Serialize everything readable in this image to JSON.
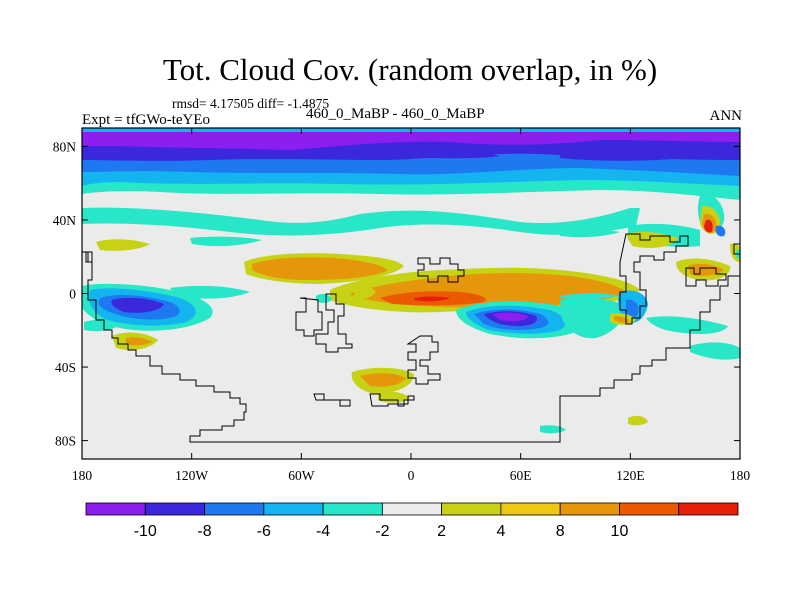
{
  "title": "Tot. Cloud Cov. (random overlap, in %)",
  "stats": "rmsd= 4.17505 diff= -1.4875",
  "expt_label": "Expt = tfGWo-teYEo",
  "center_label": "460_0_MaBP - 460_0_MaBP",
  "season": "ANN",
  "map": {
    "projection": "cylindrical equidistant",
    "lon_range": [
      -180,
      180
    ],
    "lat_range": [
      -90,
      90
    ],
    "x_ticks": [
      {
        "value": -180,
        "label": "180"
      },
      {
        "value": -120,
        "label": "120W"
      },
      {
        "value": -60,
        "label": "60W"
      },
      {
        "value": 0,
        "label": "0"
      },
      {
        "value": 60,
        "label": "60E"
      },
      {
        "value": 120,
        "label": "120E"
      },
      {
        "value": 180,
        "label": "180"
      }
    ],
    "y_ticks": [
      {
        "value": 80,
        "label": "80N"
      },
      {
        "value": 40,
        "label": "40N"
      },
      {
        "value": 0,
        "label": "0"
      },
      {
        "value": -40,
        "label": "40S"
      },
      {
        "value": -80,
        "label": "80S"
      }
    ],
    "background_color": "#ebebeb",
    "coastline_color": "#000000"
  },
  "colorbar": {
    "colors": [
      "#8c1ef0",
      "#3c28dc",
      "#1e78f0",
      "#14b4f0",
      "#28e6c8",
      "#ebebeb",
      "#c8d214",
      "#f0c814",
      "#e6960a",
      "#eb5a00",
      "#e61e0a"
    ],
    "labels": [
      {
        "after_box": 1,
        "text": "-10"
      },
      {
        "after_box": 2,
        "text": "-8"
      },
      {
        "after_box": 3,
        "text": "-6"
      },
      {
        "after_box": 4,
        "text": "-4"
      },
      {
        "after_box": 5,
        "text": "-2"
      },
      {
        "after_box": 6,
        "text": "2"
      },
      {
        "after_box": 7,
        "text": "4"
      },
      {
        "after_box": 8,
        "text": "8"
      },
      {
        "after_box": 9,
        "text": "10"
      }
    ]
  }
}
